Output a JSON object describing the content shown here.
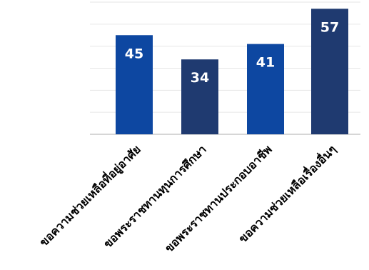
{
  "chart_data": {
    "type": "bar",
    "categories": [
      "ขอความช่วยเหลือที่อยู่อาศัย",
      "ขอพระราชทานทุนการศึกษา",
      "ขอพระราชทานประกอบอาชีพ",
      "ขอความช่วยเหลือเรื่องอื่นๆ"
    ],
    "values": [
      45,
      34,
      41,
      57
    ],
    "data_labels": [
      "45",
      "34",
      "41",
      "57"
    ],
    "colors": [
      "#0d47a1",
      "#1f3a70",
      "#0d47a1",
      "#1f3a70"
    ],
    "ylim": [
      0,
      60
    ],
    "grid": true,
    "legend": "none",
    "title": "",
    "xlabel": "",
    "ylabel": ""
  }
}
